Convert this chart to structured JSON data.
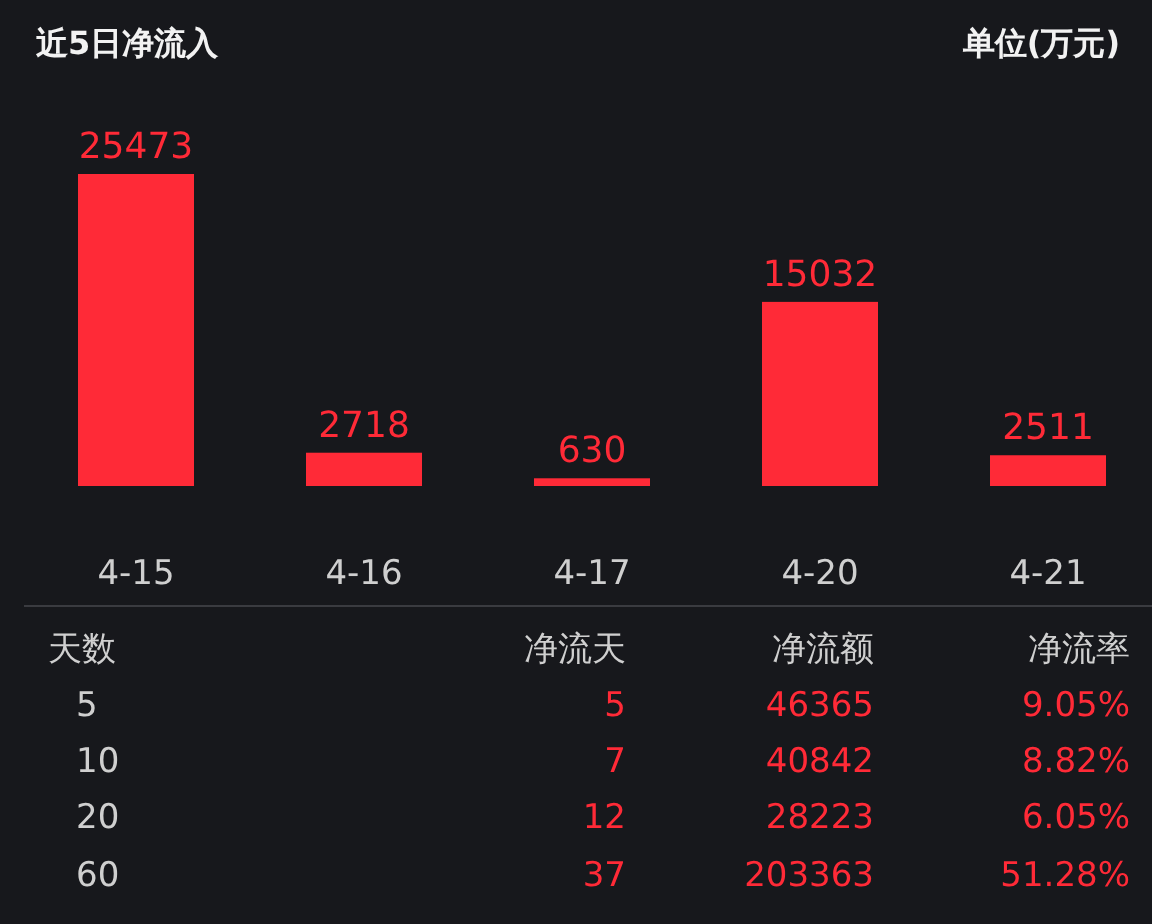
{
  "chart_data": [
    {
      "type": "bar",
      "title": "近5日净流入",
      "subtitle": "单位(万元)",
      "categories": [
        "4-15",
        "4-16",
        "4-17",
        "4-20",
        "4-21"
      ],
      "values": [
        25473,
        2718,
        630,
        15032,
        2511
      ],
      "color": "#ff2a37",
      "data_labels": true
    },
    {
      "type": "other",
      "annotations": [
        "天数",
        "净流天",
        "净流额",
        "净流率",
        "5",
        "5",
        "46365",
        "9.05%",
        "10",
        "7",
        "40842",
        "8.82%",
        "20",
        "12",
        "28223",
        "6.05%",
        "60",
        "37",
        "203363",
        "51.28%"
      ]
    }
  ]
}
